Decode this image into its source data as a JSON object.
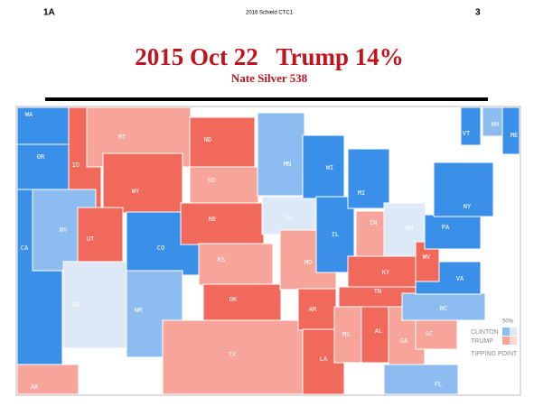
{
  "header": {
    "left": "1A",
    "center": "2016 Schield CTC1",
    "right": "3"
  },
  "title": "2015 Oct 22   Trump 14%",
  "subtitle": "Nate Silver 538",
  "map": {
    "states": [
      "WA",
      "OR",
      "CA",
      "ID",
      "NV",
      "MT",
      "WY",
      "UT",
      "AZ",
      "CO",
      "NM",
      "ND",
      "SD",
      "NE",
      "KS",
      "OK",
      "TX",
      "MN",
      "IA",
      "MO",
      "AR",
      "LA",
      "WI",
      "IL",
      "MI",
      "IN",
      "OH",
      "KY",
      "TN",
      "MS",
      "AL",
      "GA",
      "FL",
      "SC",
      "NC",
      "VA",
      "WV",
      "PA",
      "NY",
      "VT",
      "NH",
      "ME",
      "AK"
    ],
    "legend": {
      "top": "50%",
      "items": [
        "CLINTON",
        "TRUMP",
        "TIPPING POINT"
      ]
    }
  }
}
